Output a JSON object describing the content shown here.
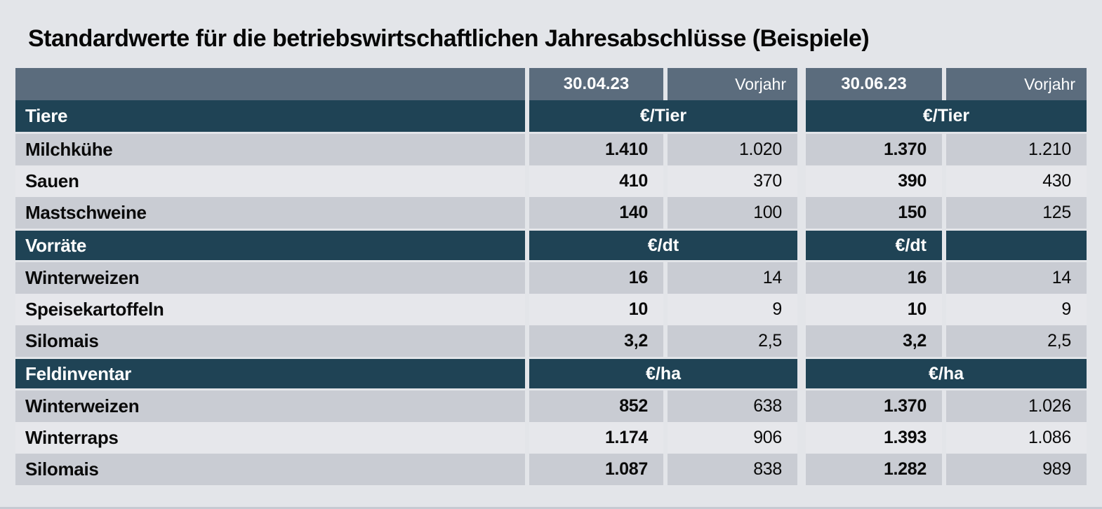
{
  "title": "Standardwerte für die betriebswirtschaftlichen Jahresabschlüsse (Beispiele)",
  "chart_data": {
    "type": "table",
    "title": "Standardwerte für die betriebswirtschaftlichen Jahresabschlüsse (Beispiele)",
    "column_headers": {
      "date1": "30.04.23",
      "prev1": "Vorjahr",
      "date2": "30.06.23",
      "prev2": "Vorjahr"
    },
    "sections": [
      {
        "label": "Tiere",
        "unit_left": "€/Tier",
        "unit_right": "€/Tier",
        "rows": [
          {
            "label": "Milchkühe",
            "v": [
              "1.410",
              "1.020",
              "1.370",
              "1.210"
            ]
          },
          {
            "label": "Sauen",
            "v": [
              "410",
              "370",
              "390",
              "430"
            ]
          },
          {
            "label": "Mastschweine",
            "v": [
              "140",
              "100",
              "150",
              "125"
            ]
          }
        ]
      },
      {
        "label": "Vorräte",
        "unit_left": "€/dt",
        "unit_right": "€/dt",
        "rows": [
          {
            "label": "Winterweizen",
            "v": [
              "16",
              "14",
              "16",
              "14"
            ]
          },
          {
            "label": "Speisekartoffeln",
            "v": [
              "10",
              "9",
              "10",
              "9"
            ]
          },
          {
            "label": "Silomais",
            "v": [
              "3,2",
              "2,5",
              "3,2",
              "2,5"
            ]
          }
        ]
      },
      {
        "label": "Feldinventar",
        "unit_left": "€/ha",
        "unit_right": "€/ha",
        "rows": [
          {
            "label": "Winterweizen",
            "v": [
              "852",
              "638",
              "1.370",
              "1.026"
            ]
          },
          {
            "label": "Winterraps",
            "v": [
              "1.174",
              "906",
              "1.393",
              "1.086"
            ]
          },
          {
            "label": "Silomais",
            "v": [
              "1.087",
              "838",
              "1.282",
              "989"
            ]
          }
        ]
      }
    ]
  },
  "colors": {
    "page_bg": "#e3e5e9",
    "header_slate": "#5b6c7d",
    "section_teal": "#1f4355",
    "row_gray": "#c9ccd3",
    "row_light": "#e6e7eb",
    "divider": "#ffffff",
    "title_text": "#070707"
  }
}
